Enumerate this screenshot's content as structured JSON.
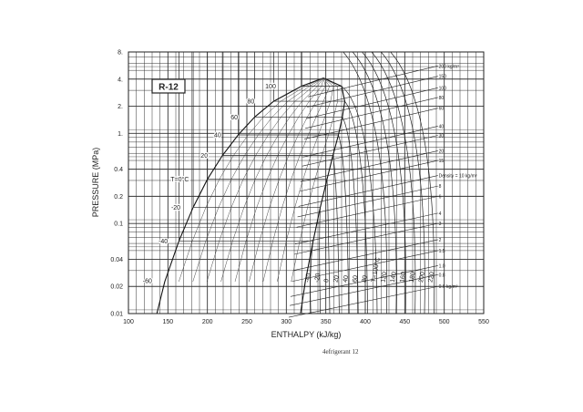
{
  "chart_data": {
    "type": "line",
    "title": "R-12",
    "xlabel": "ENTHALPY (kJ/kg)",
    "ylabel": "PRESSURE (MPa)",
    "xlim": [
      100,
      550
    ],
    "ylim": [
      0.01,
      8
    ],
    "yscale": "log",
    "grid": true,
    "x_ticks": [
      "100",
      "150",
      "200",
      "250",
      "300",
      "350",
      "400",
      "450",
      "500",
      "550"
    ],
    "y_ticks": [
      {
        "value": 0.01,
        "label": "0.01"
      },
      {
        "value": 0.02,
        "label": "0.02"
      },
      {
        "value": 0.04,
        "label": "0.04"
      },
      {
        "value": 0.1,
        "label": "0.1"
      },
      {
        "value": 0.2,
        "label": "0.2"
      },
      {
        "value": 0.4,
        "label": "0.4"
      },
      {
        "value": 1,
        "label": "1."
      },
      {
        "value": 2,
        "label": "2."
      },
      {
        "value": 4,
        "label": "4."
      },
      {
        "value": 8,
        "label": "8."
      }
    ],
    "saturation_liquid": {
      "h": [
        146,
        164,
        182,
        200,
        219,
        239,
        260,
        284,
        319,
        347
      ],
      "p": [
        0.0226,
        0.064,
        0.151,
        0.309,
        0.567,
        0.961,
        1.52,
        2.27,
        3.33,
        4.11
      ]
    },
    "saturation_vapor": {
      "h": [
        324,
        334,
        343,
        351.5,
        359,
        366,
        371,
        374,
        370,
        347
      ],
      "p": [
        0.0226,
        0.064,
        0.151,
        0.309,
        0.567,
        0.961,
        1.52,
        2.27,
        3.33,
        4.11
      ]
    },
    "isotherm_labels_left": [
      {
        "label": "-60",
        "h": 124,
        "p": 0.023
      },
      {
        "label": "-40",
        "h": 144,
        "p": 0.064
      },
      {
        "label": "-20",
        "h": 160,
        "p": 0.151
      },
      {
        "label": "T=0°C",
        "h": 165,
        "p": 0.309
      },
      {
        "label": "20",
        "h": 196,
        "p": 0.567
      },
      {
        "label": "40",
        "h": 213,
        "p": 0.961
      },
      {
        "label": "60",
        "h": 234,
        "p": 1.52
      },
      {
        "label": "80",
        "h": 255,
        "p": 2.27
      },
      {
        "label": "100",
        "h": 280,
        "p": 3.33
      }
    ],
    "isotherms": [
      {
        "label": "-40",
        "t": -40
      },
      {
        "label": "-20",
        "t": -20
      },
      {
        "label": "0",
        "t": 0
      },
      {
        "label": "20",
        "t": 20
      },
      {
        "label": "40",
        "t": 40
      },
      {
        "label": "60",
        "t": 60
      },
      {
        "label": "80",
        "t": 80
      },
      {
        "label": "T=100°C",
        "t": 100
      },
      {
        "label": "120",
        "t": 120
      },
      {
        "label": "140",
        "t": 140
      },
      {
        "label": "160",
        "t": 160
      },
      {
        "label": "180",
        "t": 180
      },
      {
        "label": "200",
        "t": 200
      },
      {
        "label": "220",
        "t": 220
      }
    ],
    "density_labels": [
      {
        "label": "200 kg/m³",
        "p": 5.6
      },
      {
        "label": "150",
        "p": 4.3
      },
      {
        "label": "100",
        "p": 3.2
      },
      {
        "label": "80",
        "p": 2.5
      },
      {
        "label": "60",
        "p": 1.9
      },
      {
        "label": "40",
        "p": 1.2
      },
      {
        "label": "30",
        "p": 0.95
      },
      {
        "label": "20",
        "p": 0.64
      },
      {
        "label": "15",
        "p": 0.5
      },
      {
        "label": "Density = 10 kg/m³",
        "p": 0.34
      },
      {
        "label": "8",
        "p": 0.26
      },
      {
        "label": "6",
        "p": 0.2
      },
      {
        "label": "4",
        "p": 0.13
      },
      {
        "label": "3",
        "p": 0.1
      },
      {
        "label": "2",
        "p": 0.066
      },
      {
        "label": "1.5",
        "p": 0.05
      },
      {
        "label": "1.0",
        "p": 0.034
      },
      {
        "label": "0.8",
        "p": 0.027
      },
      {
        "label": "0.6 kg/m³",
        "p": 0.02
      }
    ]
  },
  "caption": "4efrigerant 12"
}
